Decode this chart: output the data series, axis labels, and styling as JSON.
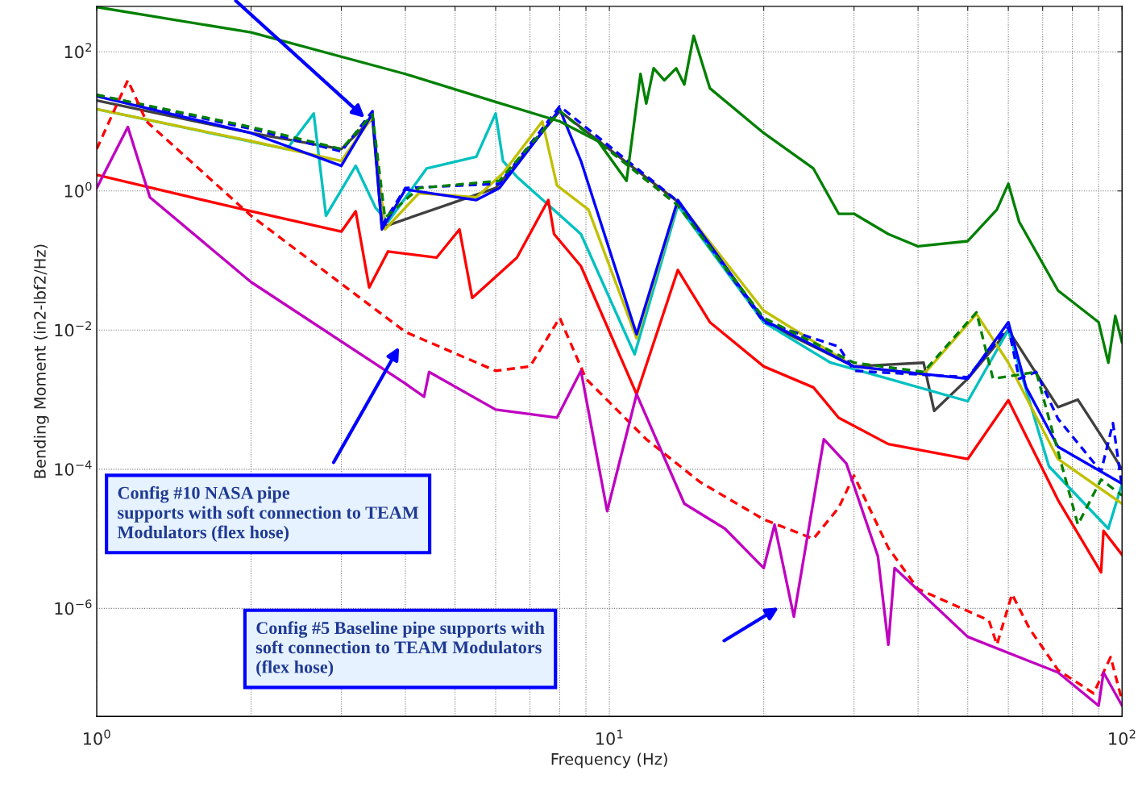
{
  "chart_data": {
    "type": "line",
    "log": "xy",
    "grid": true,
    "xlabel": "Frequency (Hz)",
    "ylabel": "Bending Moment (in2-lbf2/Hz)",
    "xlim": [
      1,
      100
    ],
    "ylim": [
      2.8e-08,
      450
    ],
    "xticks": [
      {
        "value": 1,
        "label": "10$^{0}$"
      },
      {
        "value": 2,
        "label": null
      },
      {
        "value": 3,
        "label": null
      },
      {
        "value": 4,
        "label": null
      },
      {
        "value": 5,
        "label": null
      },
      {
        "value": 6,
        "label": null
      },
      {
        "value": 7,
        "label": null
      },
      {
        "value": 8,
        "label": null
      },
      {
        "value": 9,
        "label": null
      },
      {
        "value": 10,
        "label": "10$^{1}$"
      },
      {
        "value": 20,
        "label": null
      },
      {
        "value": 30,
        "label": null
      },
      {
        "value": 40,
        "label": null
      },
      {
        "value": 50,
        "label": null
      },
      {
        "value": 60,
        "label": null
      },
      {
        "value": 70,
        "label": null
      },
      {
        "value": 80,
        "label": null
      },
      {
        "value": 90,
        "label": null
      },
      {
        "value": 100,
        "label": "10$^{2}$"
      }
    ],
    "yticks": [
      {
        "value": 1e-06,
        "label": "10$^{−6}$"
      },
      {
        "value": 0.0001,
        "label": "10$^{−4}$"
      },
      {
        "value": 0.01,
        "label": "10$^{−2}$"
      },
      {
        "value": 1,
        "label": "10$^{0}$"
      },
      {
        "value": 100,
        "label": "10$^{2}$"
      }
    ],
    "series": [
      {
        "color": "#404040",
        "line_style": "solid",
        "x": [
          1,
          2,
          3,
          3.45,
          3.6,
          4,
          6,
          8,
          13.6,
          20,
          30,
          41,
          43,
          50,
          60,
          75,
          82,
          92,
          100
        ],
        "values": [
          20,
          6.8,
          4,
          11,
          0.3,
          null,
          1.1,
          14,
          0.7,
          0.013,
          0.003,
          0.0034,
          0.00069,
          0.002,
          0.01,
          0.00078,
          0.001,
          0.00027,
          0.0001
        ]
      },
      {
        "color": "#00c0c0",
        "line_style": "solid",
        "x": [
          1,
          2.35,
          2.65,
          2.8,
          3.2,
          3.5,
          3.7,
          4.4,
          5.5,
          6,
          6.2,
          6.6,
          8.8,
          11.2,
          13.6,
          20,
          27,
          35,
          50,
          60,
          72,
          94,
          100
        ],
        "values": [
          15,
          4,
          13,
          0.44,
          2.3,
          0.57,
          0.36,
          2.1,
          3.1,
          13,
          2.7,
          1.6,
          0.24,
          0.0045,
          0.62,
          0.013,
          0.0034,
          0.002,
          0.00095,
          0.01,
          0.00011,
          1.4e-05,
          6.2e-05
        ]
      },
      {
        "color": "#c0c000",
        "line_style": "solid",
        "x": [
          1,
          2,
          3,
          3.45,
          3.65,
          4.25,
          5.5,
          6.2,
          7.4,
          7.9,
          9.1,
          11.3,
          13.6,
          20,
          30,
          41,
          52,
          60,
          75,
          100
        ],
        "values": [
          15,
          5.2,
          2.7,
          11.6,
          0.28,
          0.93,
          0.81,
          1.8,
          10,
          1.2,
          0.54,
          0.0076,
          0.71,
          0.019,
          0.003,
          0.0023,
          0.017,
          0.0034,
          0.00014,
          3.2e-05
        ]
      },
      {
        "color": "#0000ff",
        "line_style": "solid",
        "x": [
          1,
          2,
          3,
          3.45,
          3.6,
          4,
          5.5,
          6.1,
          8,
          8.8,
          11.3,
          13.6,
          20,
          30,
          50,
          60,
          65,
          75,
          100
        ],
        "values": [
          23,
          6.8,
          2.3,
          13,
          0.28,
          1.05,
          0.74,
          1.1,
          15,
          2.7,
          0.0087,
          0.74,
          0.014,
          0.003,
          0.002,
          0.013,
          0.0015,
          0.00021,
          6.2e-05
        ]
      },
      {
        "color": "#0000ff",
        "line_style": "dashed",
        "x": [
          1,
          2,
          3,
          3.45,
          3.6,
          4,
          6.1,
          8,
          13.6,
          20,
          28,
          30,
          50,
          60,
          63,
          68,
          75,
          91,
          96,
          100
        ],
        "values": [
          24,
          7.8,
          3.7,
          14,
          0.32,
          1.1,
          1.27,
          16.5,
          0.71,
          0.013,
          0.0058,
          0.0026,
          0.0021,
          0.011,
          0.002,
          0.0025,
          0.00053,
          9.3e-05,
          0.00046,
          5.5e-05
        ]
      },
      {
        "color": "#008000",
        "line_style": "dashed",
        "x": [
          1,
          2,
          3,
          3.45,
          3.65,
          4.25,
          6.1,
          8,
          13.6,
          20,
          30,
          41,
          52,
          56,
          68,
          75,
          82,
          91,
          100
        ],
        "values": [
          24,
          8.3,
          4,
          12.6,
          0.41,
          1.1,
          1.4,
          14,
          0.62,
          0.015,
          0.0034,
          0.0025,
          0.018,
          0.002,
          0.0025,
          0.00018,
          1.6e-05,
          7.1e-05,
          4.2e-05
        ]
      },
      {
        "color": "#ff0000",
        "line_style": "solid",
        "x": [
          1,
          2,
          3,
          3.2,
          3.4,
          3.7,
          4.6,
          5.1,
          5.4,
          6.6,
          7.6,
          7.8,
          8.8,
          11.3,
          13.6,
          15.7,
          20,
          25,
          28,
          35,
          50,
          60,
          75,
          91,
          92,
          100
        ],
        "values": [
          1.7,
          0.51,
          0.26,
          0.51,
          0.041,
          0.135,
          0.11,
          0.28,
          0.029,
          0.11,
          0.74,
          0.24,
          0.083,
          0.0012,
          0.073,
          0.013,
          0.003,
          0.0015,
          0.00055,
          0.00023,
          0.00014,
          0.00098,
          3.6e-05,
          3.3e-06,
          1.3e-05,
          5.9e-06
        ]
      },
      {
        "color": "#ff0000",
        "line_style": "dashed",
        "x": [
          1,
          1.15,
          1.25,
          2,
          4,
          6,
          7,
          8,
          9,
          11.8,
          15,
          20,
          25,
          28,
          30,
          35,
          40,
          55,
          57,
          61,
          66,
          75,
          88,
          95,
          100
        ],
        "values": [
          4,
          39,
          10,
          0.44,
          0.0094,
          0.0026,
          0.003,
          0.015,
          0.002,
          0.00027,
          6.6e-05,
          1.9e-05,
          1e-05,
          2.8e-05,
          8.1e-05,
          7.4e-06,
          1.9e-06,
          6.7e-07,
          3e-07,
          1.6e-06,
          5.1e-07,
          1.3e-07,
          6e-08,
          2e-07,
          4.7e-08
        ]
      },
      {
        "color": "#c000c0",
        "line_style": "solid",
        "x": [
          1,
          1.15,
          1.27,
          2,
          4,
          4.35,
          4.45,
          6,
          7.9,
          8.8,
          9.9,
          11.3,
          14,
          16.8,
          20,
          21,
          22.9,
          26.2,
          29,
          33.4,
          35,
          36,
          50,
          75,
          90,
          92,
          100
        ],
        "values": [
          1.1,
          8.3,
          0.81,
          0.049,
          0.0017,
          0.0011,
          0.0025,
          0.00072,
          0.00055,
          0.0026,
          2.5e-05,
          0.0012,
          3.2e-05,
          1.4e-05,
          3.8e-06,
          1.6e-05,
          7.6e-07,
          0.00027,
          0.00012,
          5.6e-06,
          3e-07,
          3.8e-06,
          3.9e-07,
          1.2e-07,
          4e-08,
          1.2e-07,
          4e-08
        ]
      },
      {
        "color": "#008000",
        "line_style": "solid",
        "x": [
          1,
          2,
          4,
          6,
          8,
          9.5,
          10.8,
          11.5,
          11.8,
          12.2,
          12.8,
          13.5,
          14,
          14.6,
          15.7,
          20,
          25,
          28,
          30,
          35,
          40,
          50,
          57,
          60,
          63,
          75,
          90,
          94,
          97,
          100
        ],
        "values": [
          440,
          190,
          48,
          19,
          10,
          5.2,
          1.4,
          48,
          18,
          58,
          39,
          58,
          34,
          170,
          30,
          6.8,
          2.1,
          0.47,
          0.47,
          0.24,
          0.16,
          0.19,
          0.54,
          1.27,
          0.36,
          0.037,
          0.013,
          0.0034,
          0.016,
          0.0066
        ]
      }
    ],
    "annotations": [
      "Config #10 NASA pipe\nsupports with soft connection to TEAM\nModulators (flex hose)",
      "Config #5 Baseline pipe supports with\nsoft connection to TEAM Modulators\n(flex hose)"
    ]
  }
}
